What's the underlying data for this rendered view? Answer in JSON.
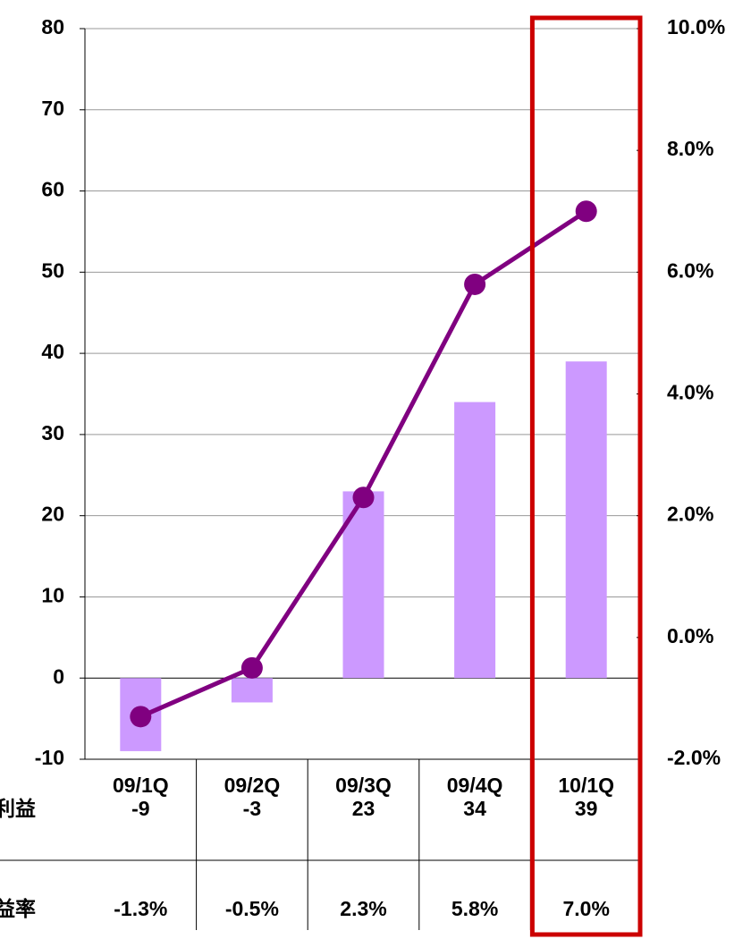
{
  "chart_data": {
    "type": "combo",
    "categories": [
      "09/1Q",
      "09/2Q",
      "09/3Q",
      "09/4Q",
      "10/1Q"
    ],
    "series": [
      {
        "name": "利益",
        "type": "bar",
        "color": "#cc99ff",
        "values": [
          -9,
          -3,
          23,
          34,
          39
        ]
      },
      {
        "name": "利益率",
        "type": "line",
        "axis": "y2",
        "color": "#800080",
        "values": [
          -1.3,
          -0.5,
          2.3,
          5.8,
          7.0
        ],
        "value_labels": [
          "-1.3%",
          "-0.5%",
          "2.3%",
          "5.8%",
          "7.0%"
        ]
      }
    ],
    "ylim": [
      -10,
      80
    ],
    "yticks": [
      -10,
      0,
      10,
      20,
      30,
      40,
      50,
      60,
      70,
      80
    ],
    "y2lim": [
      -2,
      10
    ],
    "y2ticks": [
      {
        "value": -2,
        "label": "-2.0%"
      },
      {
        "value": 0,
        "label": "0.0%"
      },
      {
        "value": 2,
        "label": "2.0%"
      },
      {
        "value": 4,
        "label": "4.0%"
      },
      {
        "value": 6,
        "label": "6.0%"
      },
      {
        "value": 8,
        "label": "8.0%"
      },
      {
        "value": 10,
        "label": "10.0%"
      }
    ],
    "grid": true,
    "negative_tick_color": "#ff0000",
    "highlight_color": "#cc0000",
    "highlight_index": 4
  }
}
